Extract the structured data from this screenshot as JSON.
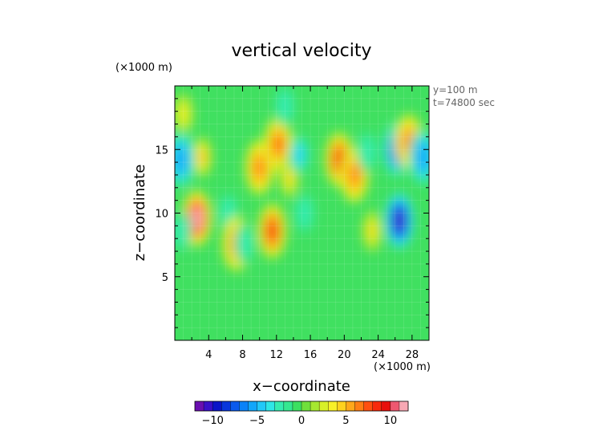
{
  "chart_data": {
    "type": "heatmap",
    "title": "vertical velocity",
    "xlabel": "x−coordinate",
    "ylabel": "z−coordinate",
    "x_unit": "(×1000 m)",
    "y_unit": "(×1000 m)",
    "annotations": [
      "y=100 m",
      "t=74800 sec"
    ],
    "xlim": [
      0,
      30
    ],
    "ylim": [
      0,
      20
    ],
    "x_ticks": [
      4,
      8,
      12,
      16,
      20,
      24,
      28
    ],
    "x_tick_labels": [
      "4",
      "8",
      "12",
      "16",
      "20",
      "24",
      "28"
    ],
    "y_ticks": [
      5,
      10,
      15
    ],
    "y_tick_labels": [
      "5",
      "10",
      "15"
    ],
    "colorbar": {
      "min": -12,
      "max": 12,
      "ticks": [
        -10,
        -5,
        0,
        5,
        10
      ],
      "tick_labels": [
        "−10",
        "−5",
        "0",
        "5",
        "10"
      ],
      "colors": [
        "#6a0fb0",
        "#3a10c8",
        "#0a14c8",
        "#0836dc",
        "#0a5aee",
        "#0a82f8",
        "#12a6fa",
        "#22c8f8",
        "#2ee6e6",
        "#34ecb0",
        "#34e890",
        "#3ce060",
        "#70e03c",
        "#a6e830",
        "#d8f028",
        "#f8f028",
        "#ffd21e",
        "#ffa81a",
        "#ff7e14",
        "#ff5010",
        "#f82a0c",
        "#e8100c",
        "#ee5870",
        "#f8a8b4"
      ]
    },
    "features": [
      {
        "x": 2.6,
        "z": 9.6,
        "value": 11
      },
      {
        "x": 3.2,
        "z": 14.4,
        "value": 5
      },
      {
        "x": 1.0,
        "z": 17.8,
        "value": 3
      },
      {
        "x": 0.7,
        "z": 14.2,
        "value": -6
      },
      {
        "x": 0.8,
        "z": 8.6,
        "value": -3
      },
      {
        "x": 6.3,
        "z": 10.0,
        "value": -3
      },
      {
        "x": 7.3,
        "z": 7.6,
        "value": 7
      },
      {
        "x": 8.2,
        "z": 7.6,
        "value": -3
      },
      {
        "x": 10.0,
        "z": 13.6,
        "value": 6
      },
      {
        "x": 12.2,
        "z": 15.4,
        "value": 7
      },
      {
        "x": 11.5,
        "z": 8.6,
        "value": 8
      },
      {
        "x": 13.5,
        "z": 12.8,
        "value": 4
      },
      {
        "x": 13.0,
        "z": 18.4,
        "value": -3
      },
      {
        "x": 14.7,
        "z": 14.6,
        "value": -5
      },
      {
        "x": 15.3,
        "z": 10.0,
        "value": -3
      },
      {
        "x": 19.4,
        "z": 14.2,
        "value": 8
      },
      {
        "x": 21.2,
        "z": 13.0,
        "value": 6
      },
      {
        "x": 22.7,
        "z": 14.8,
        "value": -3
      },
      {
        "x": 23.3,
        "z": 8.6,
        "value": 4
      },
      {
        "x": 26.2,
        "z": 15.0,
        "value": -8
      },
      {
        "x": 26.5,
        "z": 9.4,
        "value": -11
      },
      {
        "x": 27.6,
        "z": 15.6,
        "value": 6
      },
      {
        "x": 29.3,
        "z": 14.4,
        "value": -6
      }
    ]
  }
}
